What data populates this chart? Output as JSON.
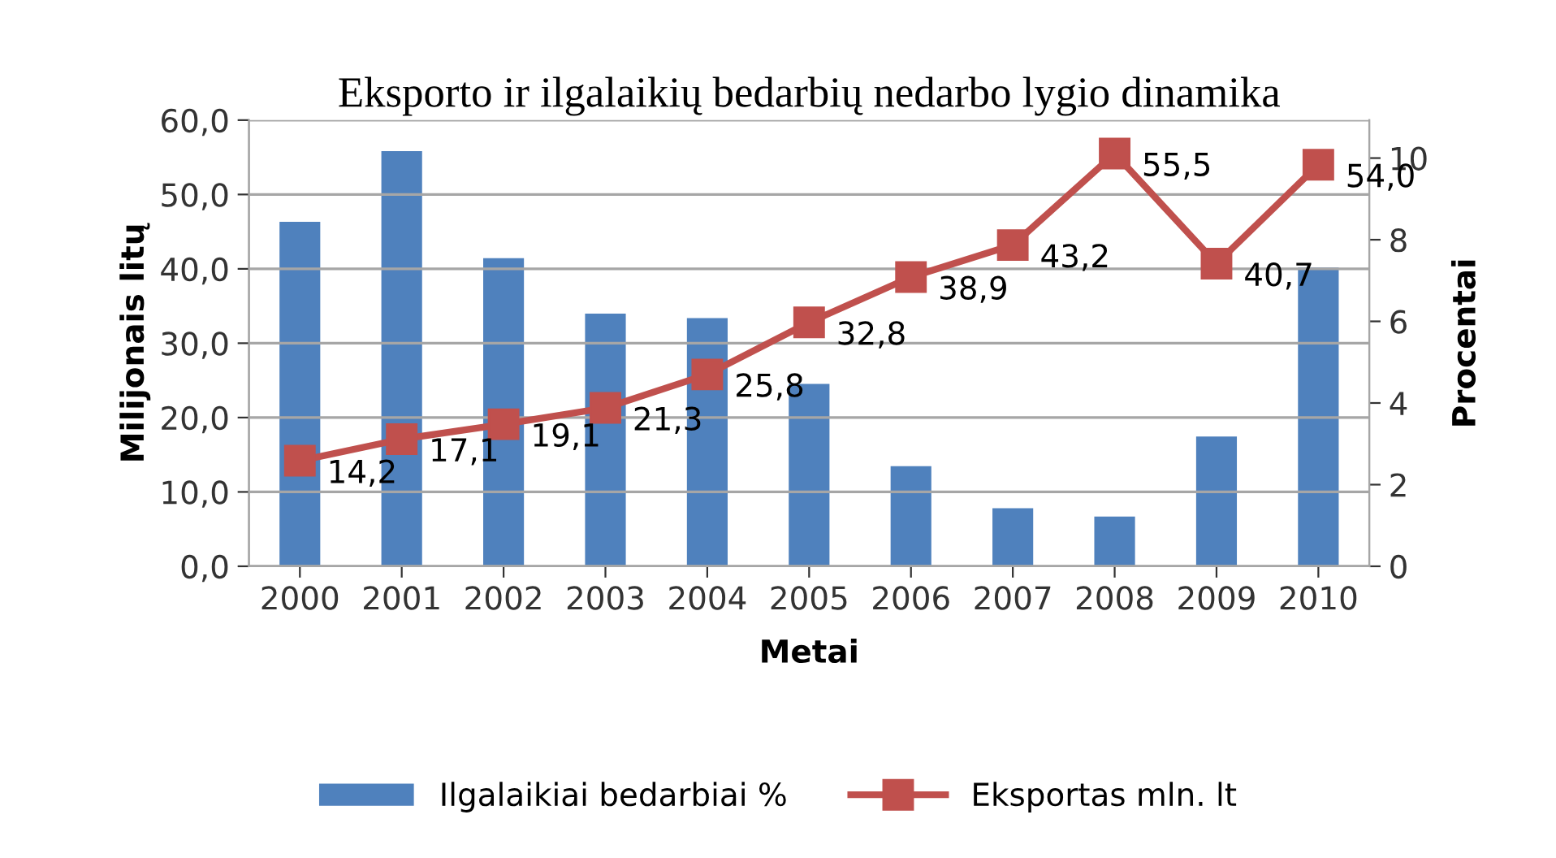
{
  "chart_data": {
    "type": "bar",
    "title": "Eksporto ir ilgalaikių bedarbių nedarbo lygio dinamika",
    "xlabel": "Metai",
    "ylabel": "Milijonais litų",
    "y2label": "Procentai",
    "categories": [
      "2000",
      "2001",
      "2002",
      "2003",
      "2004",
      "2005",
      "2006",
      "2007",
      "2008",
      "2009",
      "2010"
    ],
    "series": [
      {
        "name": "Ilgalaikiai bedarbiai %",
        "axis": "y2",
        "color": "#4f81bd",
        "values": [
          8.44,
          10.17,
          7.55,
          6.19,
          6.08,
          4.47,
          2.45,
          1.42,
          1.22,
          3.18,
          7.32
        ]
      },
      {
        "name": "Eksportas mln. lt",
        "type": "line",
        "color": "#c0504d",
        "marker": "square",
        "data_labels": true,
        "value_labels": [
          "14,2",
          "17,1",
          "19,1",
          "21,3",
          "25,8",
          "32,8",
          "38,9",
          "43,2",
          "55,5",
          "40,7",
          "54,0"
        ],
        "values": [
          14.2,
          17.1,
          19.1,
          21.3,
          25.8,
          32.8,
          38.9,
          43.2,
          55.5,
          40.7,
          54.0
        ]
      }
    ],
    "ylim": [
      0,
      60
    ],
    "yticks": [
      {
        "value": 0,
        "label": "0,0"
      },
      {
        "value": 10,
        "label": "10,0"
      },
      {
        "value": 20,
        "label": "20,0"
      },
      {
        "value": 30,
        "label": "30,0"
      },
      {
        "value": 40,
        "label": "40,0"
      },
      {
        "value": 50,
        "label": "50,0"
      },
      {
        "value": 60,
        "label": "60,0"
      }
    ],
    "y2lim": [
      0,
      10.93
    ],
    "y2ticks": [
      0,
      2,
      4,
      6,
      8,
      10
    ],
    "grid": "y",
    "legend": "bottom"
  }
}
